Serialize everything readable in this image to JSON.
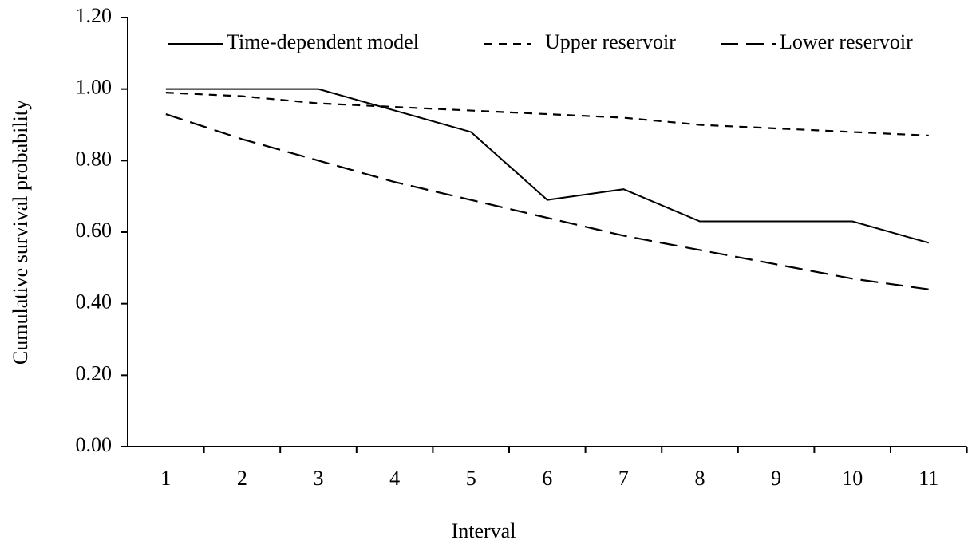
{
  "chart_data": {
    "type": "line",
    "xlabel": "Interval",
    "ylabel": "Cumulative survival probability",
    "categories": [
      "1",
      "2",
      "3",
      "4",
      "5",
      "6",
      "7",
      "8",
      "9",
      "10",
      "11"
    ],
    "series": [
      {
        "name": "Time-dependent model",
        "color": "#000000",
        "line_style": "solid",
        "values": [
          1.0,
          1.0,
          1.0,
          0.94,
          0.88,
          0.69,
          0.72,
          0.63,
          0.63,
          0.63,
          0.57
        ]
      },
      {
        "name": "Upper reservoir",
        "color": "#000000",
        "line_style": "dashed",
        "values": [
          0.99,
          0.98,
          0.96,
          0.95,
          0.94,
          0.93,
          0.92,
          0.9,
          0.89,
          0.88,
          0.87
        ]
      },
      {
        "name": "Lower reservoir",
        "color": "#000000",
        "line_style": "long-dashed",
        "values": [
          0.93,
          0.86,
          0.8,
          0.74,
          0.69,
          0.64,
          0.59,
          0.55,
          0.51,
          0.47,
          0.44
        ]
      }
    ],
    "ylim": [
      0,
      1.2
    ],
    "yticks": [
      {
        "value": 0,
        "label": "0.00"
      },
      {
        "value": 0.2,
        "label": "0.20"
      },
      {
        "value": 0.4,
        "label": "0.40"
      },
      {
        "value": 0.6,
        "label": "0.60"
      },
      {
        "value": 0.8,
        "label": "0.80"
      },
      {
        "value": 1.0,
        "label": "1.00"
      },
      {
        "value": 1.2,
        "label": "1.20"
      }
    ],
    "grid": false,
    "legend": "top"
  }
}
